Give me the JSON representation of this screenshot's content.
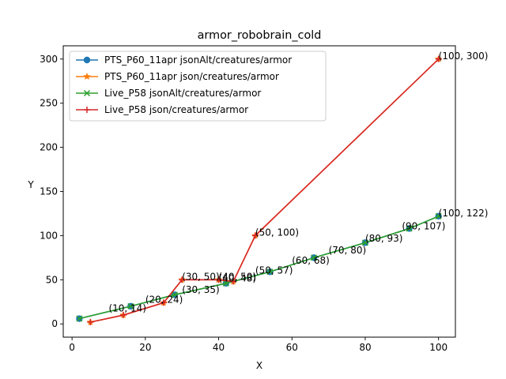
{
  "chart_data": {
    "type": "line",
    "title": "armor_robobrain_cold",
    "xlabel": "X",
    "ylabel": "Y",
    "xlim": [
      -2.4,
      104.6
    ],
    "ylim": [
      -15,
      315
    ],
    "xticks": [
      0,
      20,
      40,
      60,
      80,
      100
    ],
    "yticks": [
      0,
      50,
      100,
      150,
      200,
      250,
      300
    ],
    "grid": false,
    "legend_position": "upper-left",
    "series": [
      {
        "name": "PTS_P60_11apr jsonAlt/creatures/armor",
        "color": "#1f77b4",
        "marker": "circle",
        "x": [
          2,
          16,
          28,
          42,
          54,
          66,
          80,
          92,
          100
        ],
        "y": [
          6,
          20,
          33,
          46,
          59,
          75,
          92,
          108,
          122
        ]
      },
      {
        "name": "PTS_P60_11apr json/creatures/armor",
        "color": "#ff7f0e",
        "marker": "star",
        "x": [
          5,
          14,
          25,
          30,
          40,
          44,
          50,
          100
        ],
        "y": [
          2,
          10,
          24,
          50,
          50,
          48,
          100,
          300
        ]
      },
      {
        "name": "Live_P58 jsonAlt/creatures/armor",
        "color": "#2ca02c",
        "marker": "x",
        "x": [
          2,
          16,
          28,
          42,
          54,
          66,
          80,
          92,
          100
        ],
        "y": [
          6,
          20,
          33,
          46,
          59,
          75,
          92,
          108,
          122
        ]
      },
      {
        "name": "Live_P58 json/creatures/armor",
        "color": "#d62728",
        "marker": "plus",
        "x": [
          5,
          14,
          25,
          30,
          40,
          44,
          50,
          100
        ],
        "y": [
          2,
          10,
          24,
          50,
          50,
          48,
          100,
          300
        ]
      }
    ],
    "annotations": [
      {
        "text": "(10, 14)",
        "x": 10,
        "y": 14
      },
      {
        "text": "(20, 24)",
        "x": 20,
        "y": 24
      },
      {
        "text": "(30, 35)",
        "x": 30,
        "y": 35
      },
      {
        "text": "(30, 50)",
        "x": 30,
        "y": 50
      },
      {
        "text": "(40, 50)",
        "x": 40,
        "y": 50
      },
      {
        "text": "(40, 48)",
        "x": 40,
        "y": 48
      },
      {
        "text": "(50, 57)",
        "x": 50,
        "y": 57
      },
      {
        "text": "(50, 100)",
        "x": 50,
        "y": 100
      },
      {
        "text": "(60, 68)",
        "x": 60,
        "y": 68
      },
      {
        "text": "(70, 80)",
        "x": 70,
        "y": 80
      },
      {
        "text": "(80, 93)",
        "x": 80,
        "y": 93
      },
      {
        "text": "(90, 107)",
        "x": 90,
        "y": 107
      },
      {
        "text": "(100, 122)",
        "x": 100,
        "y": 122
      },
      {
        "text": "(100, 300)",
        "x": 100,
        "y": 300
      }
    ]
  }
}
